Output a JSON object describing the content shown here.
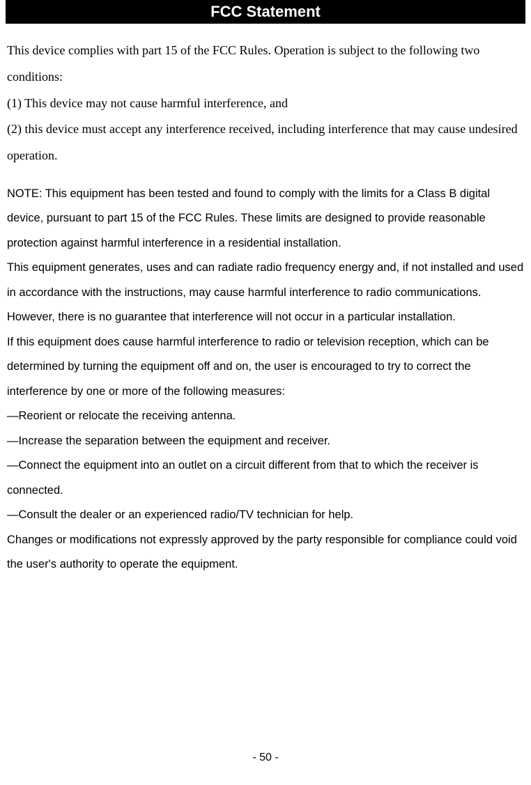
{
  "header": {
    "title": "FCC Statement",
    "background_color": "#000000",
    "text_color": "#ffffff"
  },
  "body": {
    "serif_section": {
      "intro": "This device complies with part 15 of the FCC Rules. Operation is subject to the following two conditions:",
      "condition1": "(1) This device may not cause harmful interference, and",
      "condition2": "(2) this device must accept any interference received, including interference that may cause undesired operation."
    },
    "sans_section": {
      "note_para1": "NOTE: This equipment has been tested and found to comply with the limits for a Class B digital device, pursuant to part 15 of the FCC Rules. These limits are designed to provide reasonable protection against harmful interference in a residential installation.",
      "note_para2": "This equipment generates, uses and can radiate radio frequency energy and, if not installed and used in accordance with the instructions, may cause harmful interference to radio communications. However, there is no guarantee that interference will not occur in a particular installation.",
      "note_para3": "If this equipment does cause harmful interference to radio or television reception, which can be determined by turning the equipment off and on, the user is encouraged to try to correct the interference by one or more of the following measures:",
      "measure1": "—Reorient or relocate the receiving antenna.",
      "measure2": "—Increase the separation between the equipment and receiver.",
      "measure3": "—Connect the equipment into an outlet on a circuit different from that to which the receiver is connected.",
      "measure4": "—Consult the dealer or an experienced radio/TV technician for help.",
      "changes": "Changes or modifications not expressly approved by the party responsible for compliance could void the user's authority to operate the equipment."
    }
  },
  "footer": {
    "page_number": "- 50 -"
  },
  "styles": {
    "page_bg": "#ffffff",
    "text_color": "#000000",
    "serif_font": "Times New Roman",
    "sans_font": "Arial",
    "serif_fontsize": 18,
    "sans_fontsize": 16.5
  }
}
